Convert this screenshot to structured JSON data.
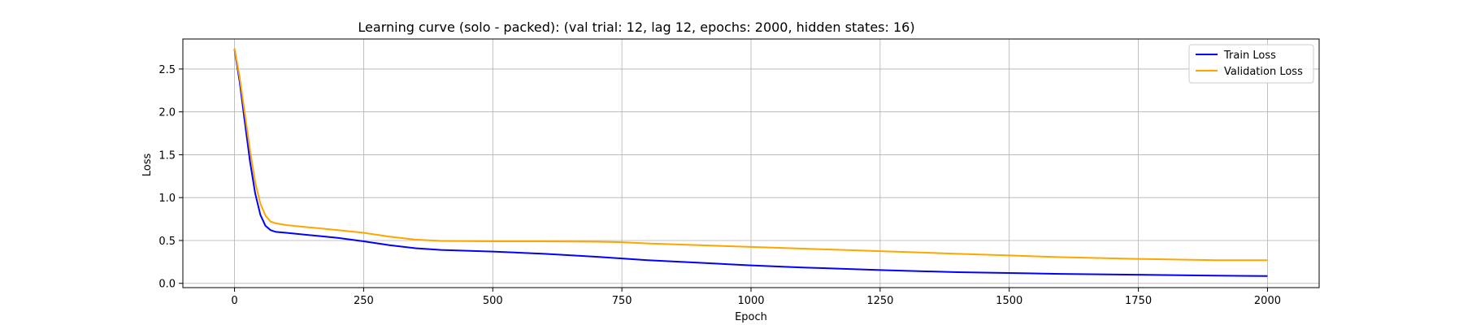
{
  "chart_data": {
    "type": "line",
    "title": "Learning curve (solo - packed): (val trial: 12, lag 12, epochs: 2000, hidden states: 16)",
    "xlabel": "Epoch",
    "ylabel": "Loss",
    "xlim": [
      -100,
      2100
    ],
    "ylim": [
      -0.05,
      2.85
    ],
    "xticks": [
      0,
      250,
      500,
      750,
      1000,
      1250,
      1500,
      1750,
      2000
    ],
    "yticks": [
      0.0,
      0.5,
      1.0,
      1.5,
      2.0,
      2.5
    ],
    "xtick_labels": [
      "0",
      "250",
      "500",
      "750",
      "1000",
      "1250",
      "1500",
      "1750",
      "2000"
    ],
    "ytick_labels": [
      "0.0",
      "0.5",
      "1.0",
      "1.5",
      "2.0",
      "2.5"
    ],
    "grid": true,
    "legend_position": "top-right",
    "series": [
      {
        "name": "Train Loss",
        "color": "#0000ff",
        "x": [
          0,
          10,
          20,
          30,
          40,
          50,
          60,
          70,
          80,
          100,
          150,
          200,
          250,
          300,
          350,
          400,
          500,
          600,
          700,
          750,
          800,
          900,
          1000,
          1100,
          1250,
          1400,
          1500,
          1600,
          1750,
          1900,
          2000
        ],
        "y": [
          2.73,
          2.35,
          1.88,
          1.42,
          1.05,
          0.8,
          0.67,
          0.62,
          0.6,
          0.59,
          0.56,
          0.53,
          0.49,
          0.445,
          0.41,
          0.39,
          0.37,
          0.345,
          0.31,
          0.29,
          0.27,
          0.24,
          0.21,
          0.185,
          0.155,
          0.13,
          0.12,
          0.11,
          0.1,
          0.09,
          0.085
        ]
      },
      {
        "name": "Validation Loss",
        "color": "#ffa500",
        "x": [
          0,
          10,
          20,
          30,
          40,
          50,
          60,
          70,
          80,
          100,
          150,
          200,
          250,
          300,
          350,
          400,
          500,
          600,
          700,
          750,
          800,
          900,
          1000,
          1100,
          1250,
          1400,
          1500,
          1600,
          1750,
          1900,
          2000
        ],
        "y": [
          2.74,
          2.4,
          1.98,
          1.55,
          1.18,
          0.93,
          0.79,
          0.72,
          0.7,
          0.68,
          0.65,
          0.62,
          0.59,
          0.545,
          0.51,
          0.495,
          0.49,
          0.49,
          0.485,
          0.48,
          0.465,
          0.445,
          0.425,
          0.405,
          0.375,
          0.345,
          0.325,
          0.305,
          0.285,
          0.27,
          0.27
        ]
      }
    ]
  }
}
